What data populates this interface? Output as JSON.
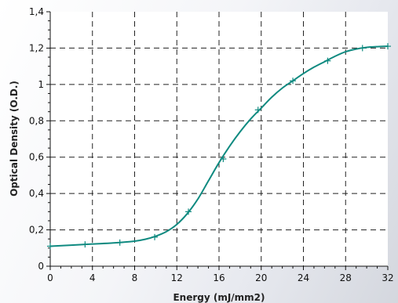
{
  "chart_data": {
    "type": "line",
    "title": "",
    "xlabel": "Energy (mJ/mm2)",
    "ylabel": "Optical Density (O.D.)",
    "xlim": [
      0,
      32
    ],
    "ylim": [
      0,
      1.4
    ],
    "x_ticks": [
      0,
      4,
      8,
      12,
      16,
      20,
      24,
      28,
      32
    ],
    "x_tick_labels": [
      "0",
      "4",
      "8",
      "12",
      "16",
      "20",
      "24",
      "28",
      "32"
    ],
    "y_ticks": [
      0,
      0.2,
      0.4,
      0.6,
      0.8,
      1,
      1.2,
      1.4
    ],
    "y_tick_labels": [
      "0",
      "0,2",
      "0,4",
      "0,6",
      "0,8",
      "1",
      "1,2",
      "1,4"
    ],
    "grid": true,
    "legend": "none",
    "series": [
      {
        "color": "#0f8a80",
        "marker": "plus",
        "points": [
          {
            "x": 0,
            "y": 0.11
          },
          {
            "x": 3.3,
            "y": 0.12
          },
          {
            "x": 6.6,
            "y": 0.13
          },
          {
            "x": 9.9,
            "y": 0.16
          },
          {
            "x": 13.1,
            "y": 0.3
          },
          {
            "x": 16.4,
            "y": 0.59
          },
          {
            "x": 19.7,
            "y": 0.86
          },
          {
            "x": 23,
            "y": 1.02
          },
          {
            "x": 26.3,
            "y": 1.13
          },
          {
            "x": 29.6,
            "y": 1.2
          },
          {
            "x": 32,
            "y": 1.21
          }
        ],
        "curve": [
          {
            "x": 0,
            "y": 0.11
          },
          {
            "x": 2,
            "y": 0.116
          },
          {
            "x": 4,
            "y": 0.122
          },
          {
            "x": 6,
            "y": 0.128
          },
          {
            "x": 8,
            "y": 0.138
          },
          {
            "x": 9,
            "y": 0.148
          },
          {
            "x": 10,
            "y": 0.165
          },
          {
            "x": 11,
            "y": 0.19
          },
          {
            "x": 12,
            "y": 0.23
          },
          {
            "x": 13,
            "y": 0.29
          },
          {
            "x": 14,
            "y": 0.37
          },
          {
            "x": 15,
            "y": 0.47
          },
          {
            "x": 16,
            "y": 0.57
          },
          {
            "x": 17,
            "y": 0.66
          },
          {
            "x": 18,
            "y": 0.74
          },
          {
            "x": 19,
            "y": 0.81
          },
          {
            "x": 20,
            "y": 0.87
          },
          {
            "x": 21,
            "y": 0.93
          },
          {
            "x": 22,
            "y": 0.98
          },
          {
            "x": 23,
            "y": 1.02
          },
          {
            "x": 24,
            "y": 1.06
          },
          {
            "x": 25,
            "y": 1.095
          },
          {
            "x": 26,
            "y": 1.125
          },
          {
            "x": 27,
            "y": 1.155
          },
          {
            "x": 28,
            "y": 1.18
          },
          {
            "x": 29,
            "y": 1.195
          },
          {
            "x": 30,
            "y": 1.204
          },
          {
            "x": 31,
            "y": 1.208
          },
          {
            "x": 32,
            "y": 1.21
          }
        ]
      }
    ]
  }
}
